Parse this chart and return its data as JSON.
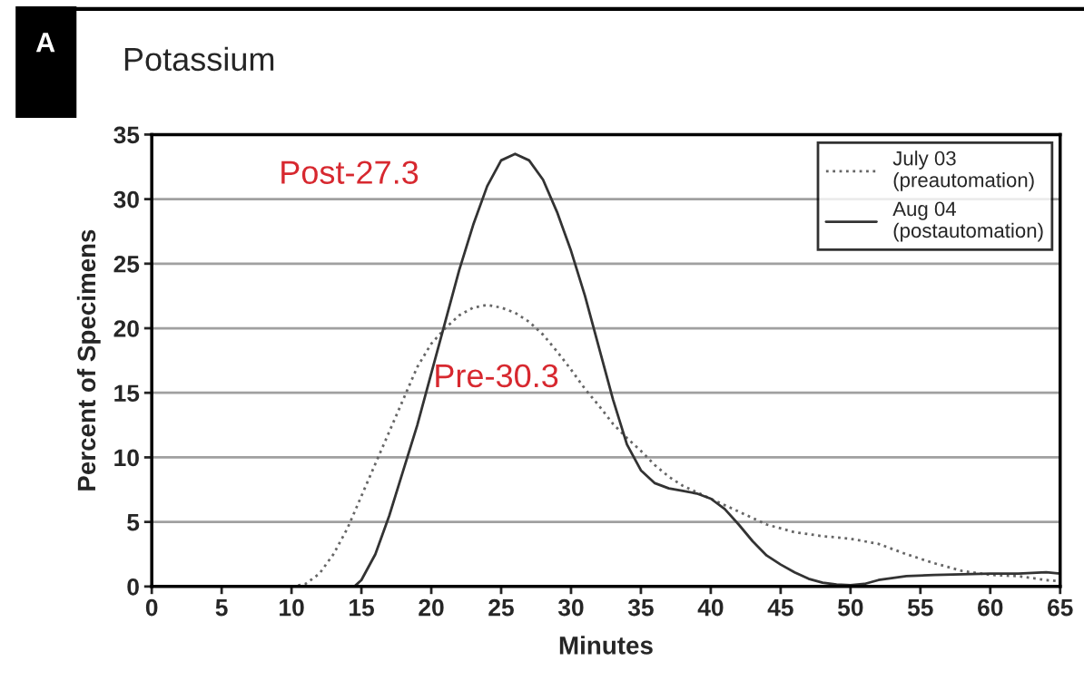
{
  "chart_data": {
    "type": "line",
    "title": "Potassium",
    "xlabel": "Minutes",
    "ylabel": "Percent of Specimens",
    "annotations": [
      "A",
      "Post-27.3",
      "Pre-30.3"
    ],
    "xlim": [
      0,
      65
    ],
    "ylim": [
      0,
      35
    ],
    "xticks": [
      0,
      5,
      10,
      15,
      20,
      25,
      30,
      35,
      40,
      45,
      50,
      55,
      60,
      65
    ],
    "yticks": [
      0,
      5,
      10,
      15,
      20,
      25,
      30,
      35
    ],
    "grid": "y",
    "legend": "top right",
    "series": [
      {
        "name": "July 03\n(preautomation)",
        "color": "#666666",
        "line_style": "dotted",
        "x": [
          10,
          11,
          12,
          13,
          14,
          15,
          16,
          17,
          18,
          19,
          20,
          21,
          22,
          23,
          24,
          25,
          26,
          27,
          28,
          29,
          30,
          31,
          32,
          33,
          34,
          35,
          36,
          37,
          38,
          39,
          40,
          42,
          44,
          46,
          48,
          50,
          52,
          54,
          56,
          58,
          60,
          62,
          64,
          65
        ],
        "values": [
          0,
          0.2,
          1,
          2.5,
          4.5,
          7,
          9.5,
          12,
          14.5,
          17,
          18.8,
          20,
          21,
          21.6,
          21.8,
          21.6,
          21.2,
          20.5,
          19.5,
          18.2,
          16.8,
          15.3,
          14,
          12.6,
          11.5,
          10.5,
          9.4,
          8.5,
          7.8,
          7.3,
          6.8,
          5.8,
          4.8,
          4.2,
          3.9,
          3.7,
          3.3,
          2.5,
          1.8,
          1.2,
          0.9,
          0.8,
          0.5,
          0.4
        ]
      },
      {
        "name": "Aug 04\n(postautomation)",
        "color": "#333333",
        "line_style": "solid",
        "x": [
          14.5,
          15,
          16,
          17,
          18,
          19,
          20,
          21,
          22,
          23,
          24,
          25,
          26,
          27,
          28,
          29,
          30,
          31,
          32,
          33,
          34,
          35,
          36,
          37,
          38,
          39,
          40,
          41,
          42,
          43,
          44,
          45,
          46,
          47,
          48,
          49,
          50,
          51,
          52,
          54,
          56,
          58,
          60,
          62,
          64,
          65
        ],
        "values": [
          0,
          0.5,
          2.5,
          5.5,
          9,
          12.5,
          16.5,
          20.5,
          24.5,
          28,
          31,
          33,
          33.5,
          33,
          31.5,
          29,
          26,
          22.5,
          18.5,
          14.5,
          11,
          9,
          8,
          7.6,
          7.4,
          7.2,
          6.8,
          6,
          4.8,
          3.5,
          2.4,
          1.7,
          1.1,
          0.6,
          0.3,
          0.15,
          0.1,
          0.2,
          0.5,
          0.8,
          0.9,
          0.95,
          1,
          1,
          1.1,
          1
        ]
      }
    ]
  }
}
